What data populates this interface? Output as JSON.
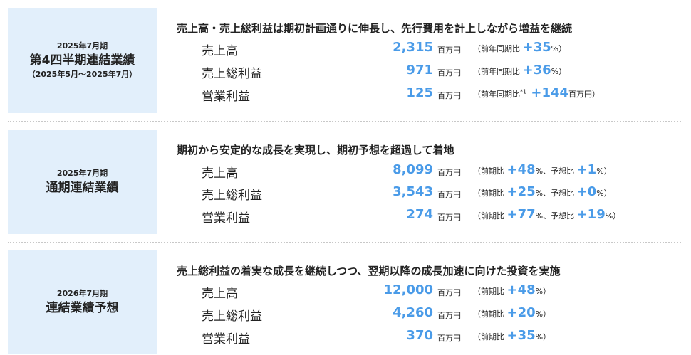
{
  "colors": {
    "accent": "#4a9be8",
    "panel": "#e2effb"
  },
  "sections": [
    {
      "period": "2025年7月期",
      "title": "第4四半期連結業績",
      "range": "（2025年5月～2025年7月）",
      "heading": "売上高・売上総利益は期初計画通りに伸長し、先行費用を計上しながら増益を継続",
      "rows": [
        {
          "label": "売上高",
          "value": "2,315",
          "unit": "百万円",
          "comparison": [
            {
              "t": "（前年同期比 ",
              "k": "n"
            },
            {
              "t": "+35",
              "k": "b"
            },
            {
              "t": "%）",
              "k": "s"
            }
          ]
        },
        {
          "label": "売上総利益",
          "value": "971",
          "unit": "百万円",
          "comparison": [
            {
              "t": "（前年同期比 ",
              "k": "n"
            },
            {
              "t": "+36",
              "k": "b"
            },
            {
              "t": "%）",
              "k": "s"
            }
          ]
        },
        {
          "label": "営業利益",
          "value": "125",
          "unit": "百万円",
          "comparison": [
            {
              "t": "（前年同期比",
              "k": "n"
            },
            {
              "t": "*1",
              "k": "sup"
            },
            {
              "t": " +144",
              "k": "b"
            },
            {
              "t": "百万円）",
              "k": "s"
            }
          ]
        }
      ]
    },
    {
      "period": "2025年7月期",
      "title": "通期連結業績",
      "range": "",
      "heading": "期初から安定的な成長を実現し、期初予想を超過して着地",
      "rows": [
        {
          "label": "売上高",
          "value": "8,099",
          "unit": "百万円",
          "comparison": [
            {
              "t": "（前期比 ",
              "k": "n"
            },
            {
              "t": "+48",
              "k": "b"
            },
            {
              "t": "%、予想比 ",
              "k": "s"
            },
            {
              "t": "+1",
              "k": "b"
            },
            {
              "t": "%）",
              "k": "s"
            }
          ]
        },
        {
          "label": "売上総利益",
          "value": "3,543",
          "unit": "百万円",
          "comparison": [
            {
              "t": "（前期比 ",
              "k": "n"
            },
            {
              "t": "+25",
              "k": "b"
            },
            {
              "t": "%、予想比 ",
              "k": "s"
            },
            {
              "t": "+0",
              "k": "b"
            },
            {
              "t": "%）",
              "k": "s"
            }
          ]
        },
        {
          "label": "営業利益",
          "value": "274",
          "unit": "百万円",
          "comparison": [
            {
              "t": "（前期比 ",
              "k": "n"
            },
            {
              "t": "+77",
              "k": "b"
            },
            {
              "t": "%、予想比 ",
              "k": "s"
            },
            {
              "t": "+19",
              "k": "b"
            },
            {
              "t": "%）",
              "k": "s"
            }
          ]
        }
      ]
    },
    {
      "period": "2026年7月期",
      "title": "連結業績予想",
      "range": "",
      "heading": "売上総利益の着実な成長を継続しつつ、翌期以降の成長加速に向けた投資を実施",
      "rows": [
        {
          "label": "売上高",
          "value": "12,000",
          "unit": "百万円",
          "comparison": [
            {
              "t": "（前期比 ",
              "k": "n"
            },
            {
              "t": "+48",
              "k": "b"
            },
            {
              "t": "%）",
              "k": "s"
            }
          ]
        },
        {
          "label": "売上総利益",
          "value": "4,260",
          "unit": "百万円",
          "comparison": [
            {
              "t": "（前期比 ",
              "k": "n"
            },
            {
              "t": "+20",
              "k": "b"
            },
            {
              "t": "%）",
              "k": "s"
            }
          ]
        },
        {
          "label": "営業利益",
          "value": "370",
          "unit": "百万円",
          "comparison": [
            {
              "t": "（前期比 ",
              "k": "n"
            },
            {
              "t": "+35",
              "k": "b"
            },
            {
              "t": "%）",
              "k": "s"
            }
          ]
        }
      ]
    }
  ]
}
